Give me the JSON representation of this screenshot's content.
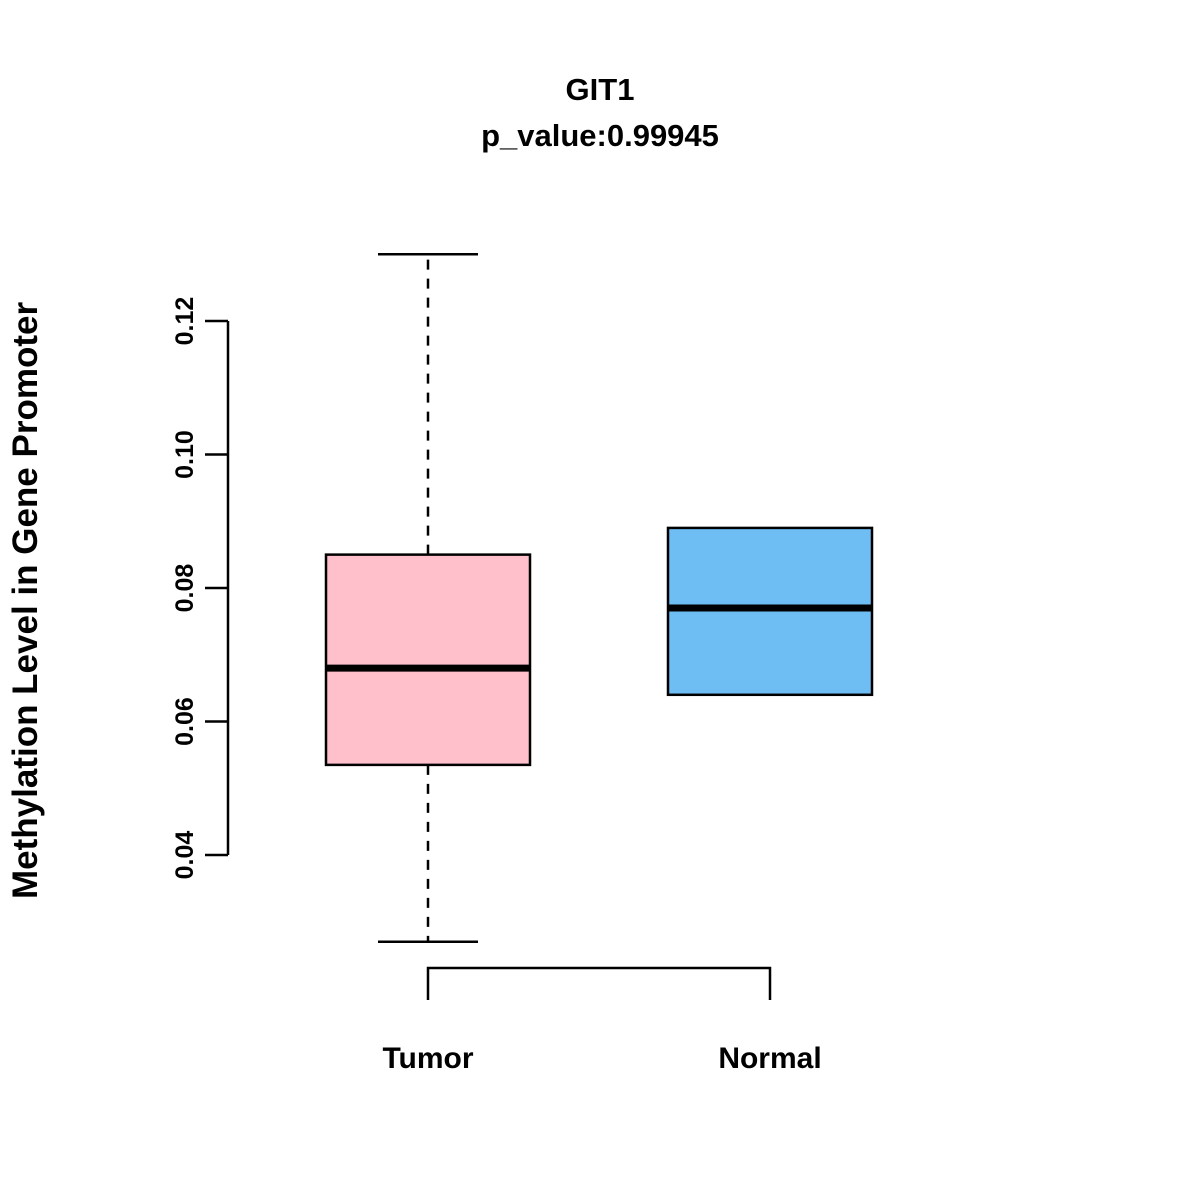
{
  "chart_data": {
    "type": "boxplot",
    "title": "GIT1",
    "subtitle": "p_value:0.99945",
    "ylabel": "Methylation Level in Gene Promoter",
    "categories": [
      "Tumor",
      "Normal"
    ],
    "yticks": [
      0.04,
      0.06,
      0.08,
      0.1,
      0.12
    ],
    "ytick_labels": [
      "0.04",
      "0.06",
      "0.08",
      "0.10",
      "0.12"
    ],
    "axis_range": [
      0.04,
      0.12
    ],
    "grid": false,
    "legend": "none",
    "series": [
      {
        "name": "Tumor",
        "color": "#FFC0CB",
        "whisker_low": 0.027,
        "q1": 0.0535,
        "median": 0.068,
        "q3": 0.085,
        "whisker_high": 0.13
      },
      {
        "name": "Normal",
        "color": "#6EBEF4",
        "whisker_low": 0.064,
        "q1": 0.064,
        "median": 0.077,
        "q3": 0.089,
        "whisker_high": 0.089
      }
    ],
    "box_border_color": "#000000",
    "median_color": "#000000",
    "axis_color": "#000000"
  }
}
